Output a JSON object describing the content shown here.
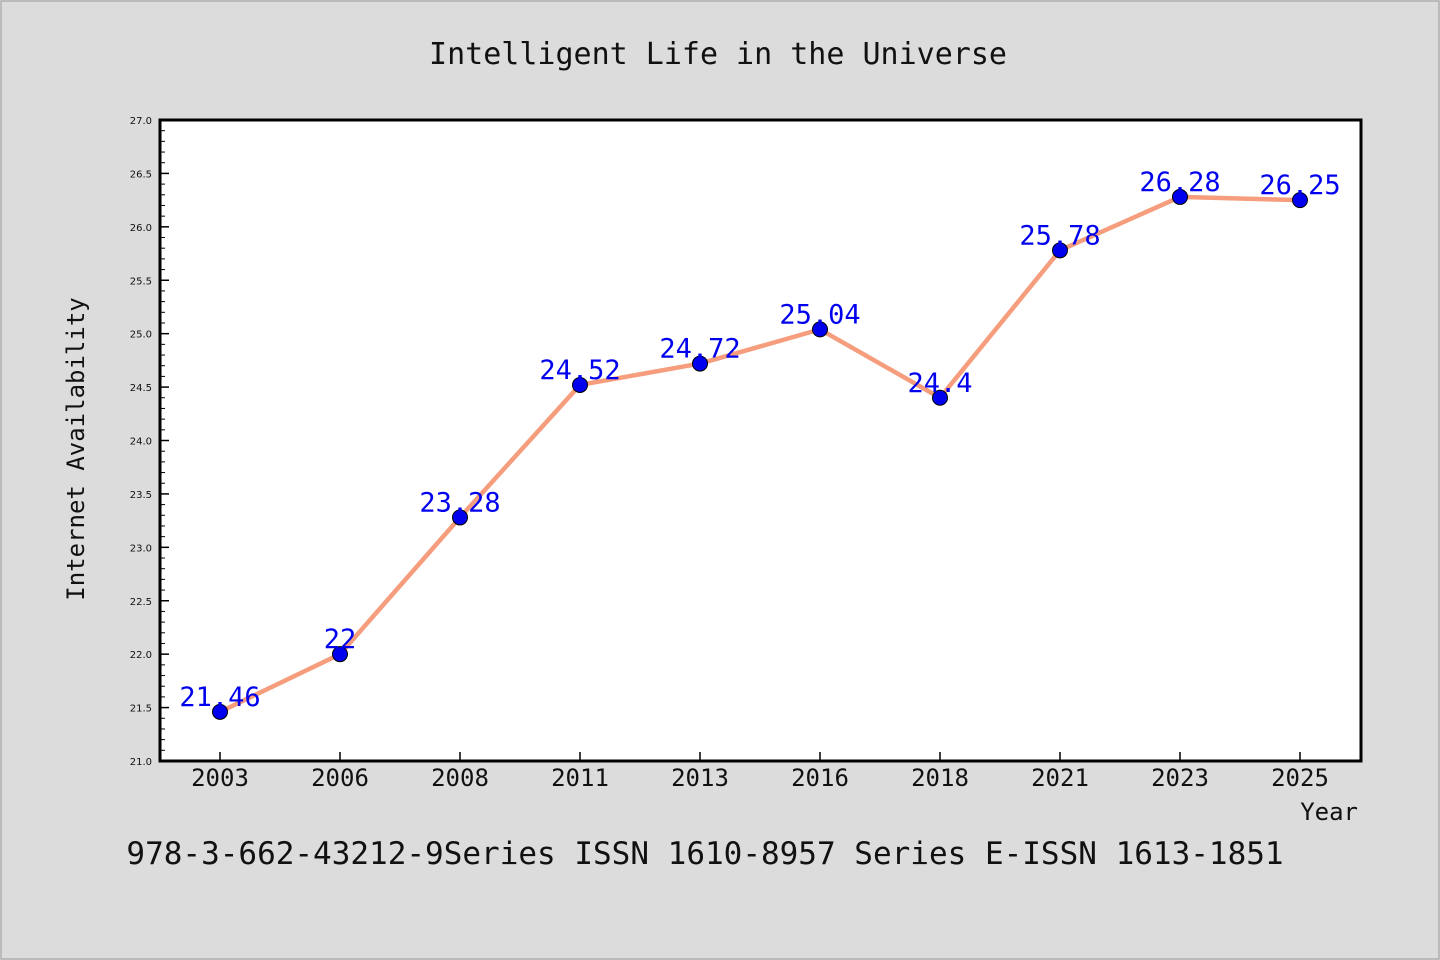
{
  "chart_data": {
    "type": "line",
    "title": "Intelligent Life in the Universe",
    "xlabel": "Year",
    "ylabel": "Internet Availability",
    "categories": [
      "2003",
      "2006",
      "2008",
      "2011",
      "2013",
      "2016",
      "2018",
      "2021",
      "2023",
      "2025"
    ],
    "series": [
      {
        "values": [
          21.46,
          22,
          23.28,
          24.52,
          24.72,
          25.04,
          24.4,
          25.78,
          26.28,
          26.25
        ],
        "labels": [
          "21.46",
          "22",
          "23.28",
          "24.52",
          "24.72",
          "25.04",
          "24.4",
          "25.78",
          "26.28",
          "26.25"
        ],
        "line_color": "#f59d7c",
        "marker_color": "#0000ee"
      }
    ],
    "ylim": [
      21.0,
      27.0
    ],
    "yticks": [
      "21.0",
      "21.5",
      "22.0",
      "22.5",
      "23.0",
      "23.5",
      "24.0",
      "24.5",
      "25.0",
      "25.5",
      "26.0",
      "26.5",
      "27.0"
    ],
    "grid": false,
    "background_color": "#dcdcdc",
    "plot_background_color": "#ffffff"
  },
  "footer": "978-3-662-43212-9Series ISSN 1610-8957 Series E-ISSN 1613-1851"
}
